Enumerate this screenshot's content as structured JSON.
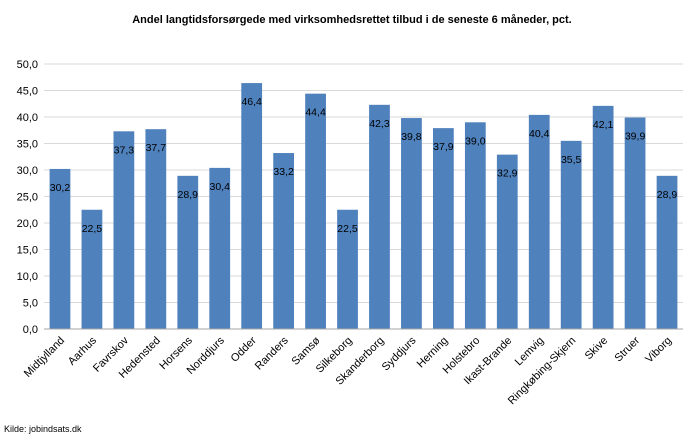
{
  "chart_data": {
    "type": "bar",
    "title": "Andel langtidsforsørgede med virksomhedsrettet tilbud i de seneste 6 måneder, pct.",
    "xlabel": "",
    "ylabel": "",
    "ylim": [
      0,
      50
    ],
    "ytick_step": 5,
    "grid": true,
    "legend": "none",
    "bar_color": "#4f81bd",
    "grid_color": "#d9d9d9",
    "categories": [
      "Midtjylland",
      "Aarhus",
      "Favrskov",
      "Hedensted",
      "Horsens",
      "Norddjurs",
      "Odder",
      "Randers",
      "Samsø",
      "Silkeborg",
      "Skanderborg",
      "Syddjurs",
      "Herning",
      "Holstebro",
      "Ikast-Brande",
      "Lemvig",
      "Ringkøbing-Skjern",
      "Skive",
      "Struer",
      "Viborg"
    ],
    "values": [
      30.2,
      22.5,
      37.3,
      37.7,
      28.9,
      30.4,
      46.4,
      33.2,
      44.4,
      22.5,
      42.3,
      39.8,
      37.9,
      39.0,
      32.9,
      40.4,
      35.5,
      42.1,
      39.9,
      28.9
    ],
    "data_labels": [
      "30,2",
      "22,5",
      "37,3",
      "37,7",
      "28,9",
      "30,4",
      "46,4",
      "33,2",
      "44,4",
      "22,5",
      "42,3",
      "39,8",
      "37,9",
      "39,0",
      "32,9",
      "40,4",
      "35,5",
      "42,1",
      "39,9",
      "28,9"
    ],
    "ytick_labels": [
      "0,0",
      "5,0",
      "10,0",
      "15,0",
      "20,0",
      "25,0",
      "30,0",
      "35,0",
      "40,0",
      "45,0",
      "50,0"
    ],
    "source": "Kilde: jobindsats.dk"
  }
}
